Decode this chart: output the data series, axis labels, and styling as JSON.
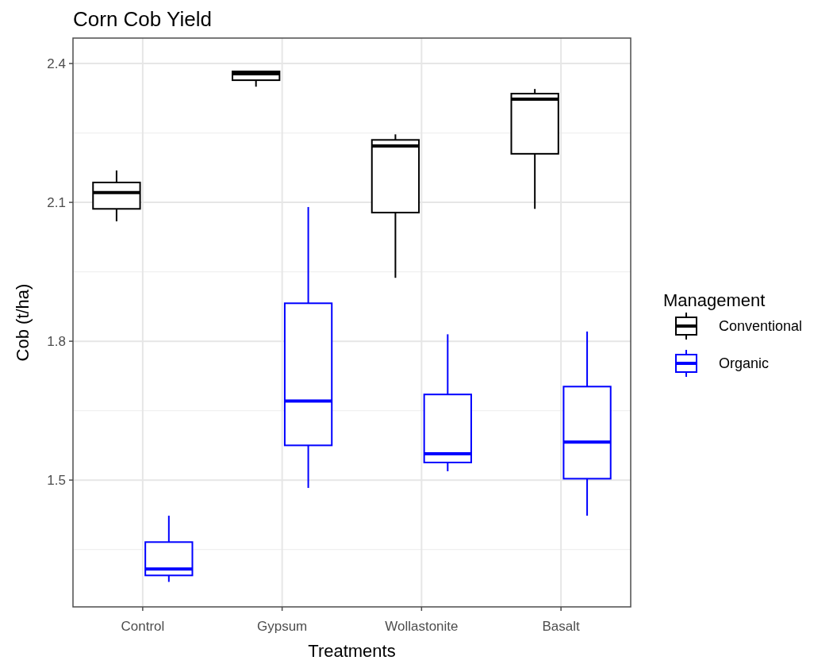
{
  "chart_data": {
    "type": "box",
    "title": "Corn Cob Yield",
    "xlabel": "Treatments",
    "ylabel": "Cob (t/ha)",
    "legend_title": "Management",
    "categories": [
      "Control",
      "Gypsum",
      "Wollastonite",
      "Basalt"
    ],
    "ylim": [
      1.226,
      2.455
    ],
    "yticks": [
      {
        "value": 1.5,
        "label": "1.5"
      },
      {
        "value": 1.8,
        "label": "1.8"
      },
      {
        "value": 2.1,
        "label": "2.1"
      },
      {
        "value": 2.4,
        "label": "2.4"
      }
    ],
    "grid": true,
    "legend": "right",
    "series": [
      {
        "name": "Conventional",
        "color": "#000000",
        "boxes": [
          {
            "low": 2.059,
            "q1": 2.086,
            "median": 2.121,
            "q3": 2.143,
            "high": 2.169
          },
          {
            "low": 2.35,
            "q1": 2.364,
            "median": 2.378,
            "q3": 2.383,
            "high": 2.383
          },
          {
            "low": 1.937,
            "q1": 2.078,
            "median": 2.222,
            "q3": 2.235,
            "high": 2.247
          },
          {
            "low": 2.086,
            "q1": 2.205,
            "median": 2.323,
            "q3": 2.335,
            "high": 2.345
          }
        ]
      },
      {
        "name": "Organic",
        "color": "#0000ff",
        "boxes": [
          {
            "low": 1.28,
            "q1": 1.294,
            "median": 1.308,
            "q3": 1.366,
            "high": 1.423
          },
          {
            "low": 1.483,
            "q1": 1.575,
            "median": 1.671,
            "q3": 1.882,
            "high": 2.09
          },
          {
            "low": 1.519,
            "q1": 1.538,
            "median": 1.557,
            "q3": 1.685,
            "high": 1.815
          },
          {
            "low": 1.423,
            "q1": 1.503,
            "median": 1.582,
            "q3": 1.702,
            "high": 1.821
          }
        ]
      }
    ]
  }
}
